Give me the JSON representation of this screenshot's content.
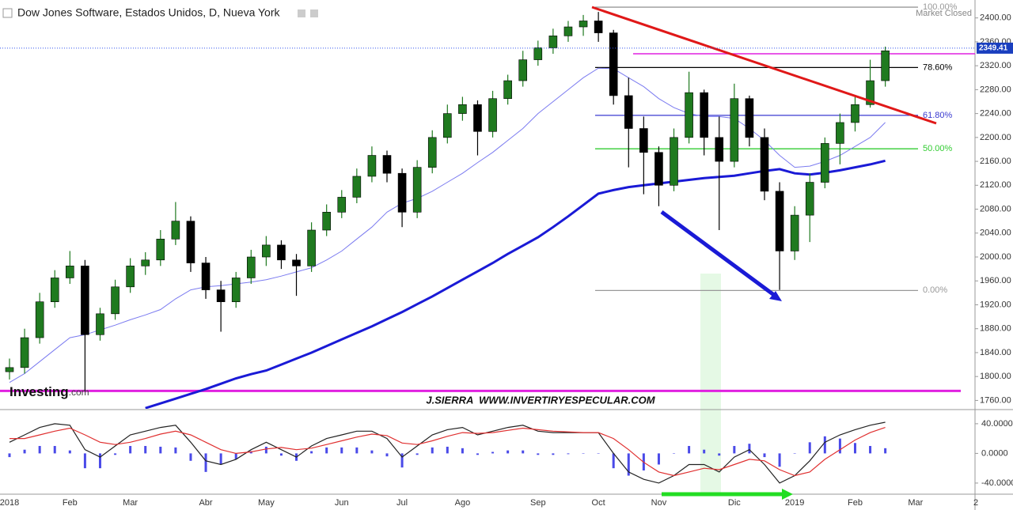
{
  "chart_data": [
    {
      "type": "candlestick",
      "title": "Dow Jones Software, Estados Unidos, D, Nueva York",
      "status": "Market Closed",
      "logo": "Investing",
      "logo_suffix": ".com",
      "watermark": "J.SIERRA  WWW.INVERTIRYESPECULAR.COM",
      "categories": [
        "2018",
        null,
        null,
        null,
        "Feb",
        null,
        null,
        null,
        "Mar",
        null,
        null,
        null,
        null,
        "Abr",
        null,
        null,
        null,
        "May",
        null,
        null,
        null,
        null,
        "Jun",
        null,
        null,
        null,
        "Jul",
        null,
        null,
        null,
        "Ago",
        null,
        null,
        null,
        null,
        "Sep",
        null,
        null,
        null,
        "Oct",
        null,
        null,
        null,
        "Nov",
        null,
        null,
        null,
        null,
        "Dic",
        null,
        null,
        null,
        "2019",
        null,
        null,
        null,
        "Feb",
        null,
        null,
        null,
        "Mar",
        null,
        null,
        null,
        "2"
      ],
      "open": [
        1808,
        1815,
        1865,
        1925,
        1965,
        1985,
        1870,
        1905,
        1950,
        1985,
        1995,
        2030,
        2060,
        1990,
        1945,
        1925,
        1965,
        2000,
        2020,
        1995,
        1985,
        2045,
        2075,
        2100,
        2135,
        2170,
        2140,
        2075,
        2150,
        2200,
        2240,
        2255,
        2210,
        2265,
        2295,
        2330,
        2350,
        2370,
        2385,
        2395,
        2375,
        2270,
        2215,
        2175,
        2120,
        2200,
        2275,
        2200,
        2160,
        2265,
        2200,
        2110,
        2010,
        2070,
        2125,
        2190,
        2225,
        2255,
        2295,
        null,
        null,
        null,
        null,
        null,
        null
      ],
      "high": [
        1830,
        1880,
        1940,
        1978,
        2010,
        1995,
        1915,
        1962,
        1998,
        2008,
        2045,
        2092,
        2068,
        2000,
        1960,
        1975,
        2012,
        2035,
        2028,
        2005,
        2058,
        2088,
        2112,
        2148,
        2185,
        2178,
        2148,
        2162,
        2212,
        2255,
        2268,
        2262,
        2278,
        2305,
        2345,
        2362,
        2382,
        2395,
        2405,
        2410,
        2380,
        2300,
        2235,
        2185,
        2215,
        2310,
        2280,
        2235,
        2290,
        2270,
        2215,
        2125,
        2085,
        2140,
        2200,
        2240,
        2270,
        2330,
        2352,
        null,
        null,
        null,
        null,
        null,
        null
      ],
      "low": [
        1795,
        1805,
        1855,
        1915,
        1955,
        1775,
        1860,
        1895,
        1940,
        1970,
        1985,
        2020,
        1975,
        1930,
        1875,
        1915,
        1955,
        1985,
        1980,
        1935,
        1975,
        2035,
        2065,
        2090,
        2125,
        2125,
        2050,
        2065,
        2140,
        2190,
        2228,
        2170,
        2200,
        2255,
        2285,
        2320,
        2340,
        2360,
        2370,
        2360,
        2255,
        2150,
        2105,
        2085,
        2110,
        2190,
        2170,
        2045,
        2150,
        2185,
        2095,
        1945,
        1995,
        2025,
        2115,
        2155,
        2210,
        2250,
        2285,
        null,
        null,
        null,
        null,
        null,
        null
      ],
      "close": [
        1815,
        1865,
        1925,
        1965,
        1985,
        1870,
        1905,
        1950,
        1985,
        1995,
        2030,
        2060,
        1990,
        1945,
        1925,
        1965,
        2000,
        2020,
        1995,
        1985,
        2045,
        2075,
        2100,
        2135,
        2170,
        2140,
        2075,
        2150,
        2200,
        2240,
        2255,
        2210,
        2265,
        2295,
        2330,
        2350,
        2370,
        2385,
        2395,
        2375,
        2270,
        2215,
        2175,
        2120,
        2200,
        2275,
        2200,
        2160,
        2265,
        2200,
        2110,
        2010,
        2070,
        2125,
        2190,
        2225,
        2255,
        2295,
        2345,
        null,
        null,
        null,
        null,
        null,
        null
      ],
      "up_color": "#1f7a1f",
      "down_color": "#000000",
      "overlays": [
        {
          "color": "#7b7bf0",
          "line_width": 1,
          "values": [
            1790,
            1805,
            1825,
            1845,
            1865,
            1870,
            1878,
            1886,
            1895,
            1903,
            1912,
            1930,
            1945,
            1950,
            1952,
            1955,
            1958,
            1962,
            1968,
            1975,
            1982,
            1995,
            2010,
            2030,
            2050,
            2075,
            2090,
            2098,
            2110,
            2125,
            2140,
            2158,
            2175,
            2195,
            2215,
            2240,
            2260,
            2280,
            2300,
            2316,
            2315,
            2300,
            2285,
            2265,
            2250,
            2240,
            2235,
            2235,
            2232,
            2215,
            2195,
            2170,
            2150,
            2152,
            2160,
            2170,
            2185,
            2200,
            2225,
            null,
            null,
            null,
            null,
            null,
            null
          ]
        },
        {
          "color": "#1a1ad6",
          "line_width": 3,
          "values": [
            null,
            null,
            null,
            null,
            null,
            null,
            null,
            null,
            null,
            1747,
            1755,
            1763,
            1771,
            1779,
            1788,
            1797,
            1804,
            1810,
            1820,
            1830,
            1840,
            1851,
            1862,
            1873,
            1884,
            1896,
            1908,
            1921,
            1934,
            1948,
            1962,
            1976,
            1990,
            2005,
            2019,
            2033,
            2050,
            2068,
            2087,
            2106,
            2112,
            2117,
            2120,
            2123,
            2126,
            2129,
            2132,
            2134,
            2136,
            2140,
            2144,
            2147,
            2140,
            2138,
            2141,
            2145,
            2150,
            2155,
            2161,
            null,
            null,
            null,
            null,
            null,
            null
          ]
        }
      ],
      "levels": [
        {
          "label": "100.00%",
          "value": 2418,
          "color": "#999999"
        },
        {
          "label": "78.60%",
          "value": 2317,
          "color": "#000000"
        },
        {
          "label": "61.80%",
          "value": 2237,
          "color": "#3a3ad0"
        },
        {
          "label": "50.00%",
          "value": 2181,
          "color": "#33cc33"
        },
        {
          "label": "0.00%",
          "value": 1944,
          "color": "#999999"
        }
      ],
      "hlines": [
        {
          "value": 1776,
          "color": "#e020e0"
        },
        {
          "value": 2340,
          "color": "#e020e0"
        }
      ],
      "last_price": 2349.41,
      "ylim": [
        1746,
        2430
      ],
      "yticks": [
        {
          "value": 1760,
          "label": "1760.00"
        },
        {
          "value": 1800,
          "label": "1800.00"
        },
        {
          "value": 1840,
          "label": "1840.00"
        },
        {
          "value": 1880,
          "label": "1880.00"
        },
        {
          "value": 1920,
          "label": "1920.00"
        },
        {
          "value": 1960,
          "label": "1960.00"
        },
        {
          "value": 2000,
          "label": "2000.00"
        },
        {
          "value": 2040,
          "label": "2040.00"
        },
        {
          "value": 2080,
          "label": "2080.00"
        },
        {
          "value": 2120,
          "label": "2120.00"
        },
        {
          "value": 2160,
          "label": "2160.00"
        },
        {
          "value": 2200,
          "label": "2200.00"
        },
        {
          "value": 2240,
          "label": "2240.00"
        },
        {
          "value": 2280,
          "label": "2280.00"
        },
        {
          "value": 2320,
          "label": "2320.00"
        },
        {
          "value": 2360,
          "label": "2360.00"
        },
        {
          "value": 2400,
          "label": "2400.00"
        }
      ],
      "grid": false
    },
    {
      "type": "macd",
      "series": [
        {
          "color": "#222222",
          "values": [
            15,
            25,
            35,
            40,
            38,
            5,
            -5,
            10,
            25,
            30,
            35,
            38,
            15,
            -10,
            -15,
            -8,
            5,
            15,
            5,
            -5,
            10,
            20,
            25,
            30,
            30,
            20,
            -5,
            10,
            25,
            32,
            35,
            25,
            30,
            35,
            38,
            30,
            28,
            28,
            28,
            28,
            0,
            -25,
            -35,
            -40,
            -30,
            -15,
            -15,
            -25,
            -5,
            5,
            -15,
            -40,
            -30,
            -10,
            15,
            25,
            32,
            38,
            42,
            null,
            null,
            null,
            null,
            null,
            null
          ]
        },
        {
          "color": "#e03030",
          "values": [
            20,
            20,
            25,
            30,
            34,
            25,
            15,
            12,
            15,
            20,
            26,
            30,
            25,
            15,
            5,
            0,
            2,
            6,
            8,
            5,
            7,
            12,
            17,
            22,
            26,
            24,
            14,
            12,
            17,
            23,
            28,
            27,
            28,
            31,
            34,
            32,
            30,
            29,
            28,
            28,
            20,
            5,
            -12,
            -25,
            -30,
            -25,
            -20,
            -22,
            -15,
            -8,
            -10,
            -22,
            -30,
            -25,
            -8,
            5,
            18,
            28,
            35,
            null,
            null,
            null,
            null,
            null,
            null
          ]
        }
      ],
      "histogram": {
        "color": "#4a4ae8",
        "values": [
          -5,
          5,
          10,
          10,
          4,
          -20,
          -20,
          -2,
          10,
          10,
          9,
          8,
          -10,
          -25,
          -15,
          -8,
          3,
          9,
          -3,
          -10,
          3,
          8,
          8,
          8,
          4,
          -4,
          -19,
          -2,
          8,
          9,
          7,
          -2,
          2,
          4,
          4,
          -2,
          -2,
          -1,
          0,
          0,
          -20,
          -30,
          -23,
          -15,
          0,
          10,
          5,
          -3,
          10,
          13,
          -5,
          -18,
          0,
          15,
          23,
          20,
          14,
          10,
          7,
          null,
          null,
          null,
          null,
          null,
          null
        ]
      },
      "ylim": [
        -55,
        58
      ],
      "yticks": [
        {
          "value": 40,
          "label": "40.0000"
        },
        {
          "value": 0,
          "label": "0.0000"
        },
        {
          "value": -40,
          "label": "-40.0000"
        }
      ]
    }
  ]
}
